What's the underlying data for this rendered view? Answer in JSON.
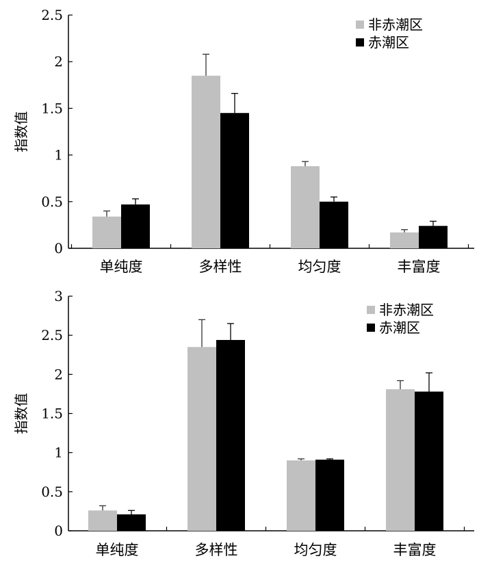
{
  "chart_data": [
    {
      "type": "bar",
      "title": "",
      "xlabel": "",
      "ylabel": "指数值",
      "ylim": [
        0,
        2.5
      ],
      "yticks": [
        "0",
        "0.5",
        "1",
        "1.5",
        "2",
        "2.5"
      ],
      "categories": [
        "单纯度",
        "多样性",
        "均匀度",
        "丰富度"
      ],
      "legend_position": "top-right",
      "series": [
        {
          "name": "非赤潮区",
          "color": "#c0c0c0",
          "values": [
            0.34,
            1.85,
            0.88,
            0.17
          ],
          "errors": [
            0.06,
            0.23,
            0.05,
            0.03
          ]
        },
        {
          "name": "赤潮区",
          "color": "#000000",
          "values": [
            0.47,
            1.45,
            0.5,
            0.24
          ],
          "errors": [
            0.06,
            0.21,
            0.05,
            0.05
          ]
        }
      ]
    },
    {
      "type": "bar",
      "title": "",
      "xlabel": "",
      "ylabel": "指数值",
      "ylim": [
        0,
        3
      ],
      "yticks": [
        "0",
        "0.5",
        "1",
        "1.5",
        "2",
        "2.5",
        "3"
      ],
      "categories": [
        "单纯度",
        "多样性",
        "均匀度",
        "丰富度"
      ],
      "legend_position": "top-right",
      "series": [
        {
          "name": "非赤潮区",
          "color": "#c0c0c0",
          "values": [
            0.26,
            2.35,
            0.9,
            1.81
          ],
          "errors": [
            0.06,
            0.35,
            0.02,
            0.11
          ]
        },
        {
          "name": "赤潮区",
          "color": "#000000",
          "values": [
            0.21,
            2.44,
            0.91,
            1.78
          ],
          "errors": [
            0.05,
            0.21,
            0.01,
            0.24
          ]
        }
      ]
    }
  ]
}
